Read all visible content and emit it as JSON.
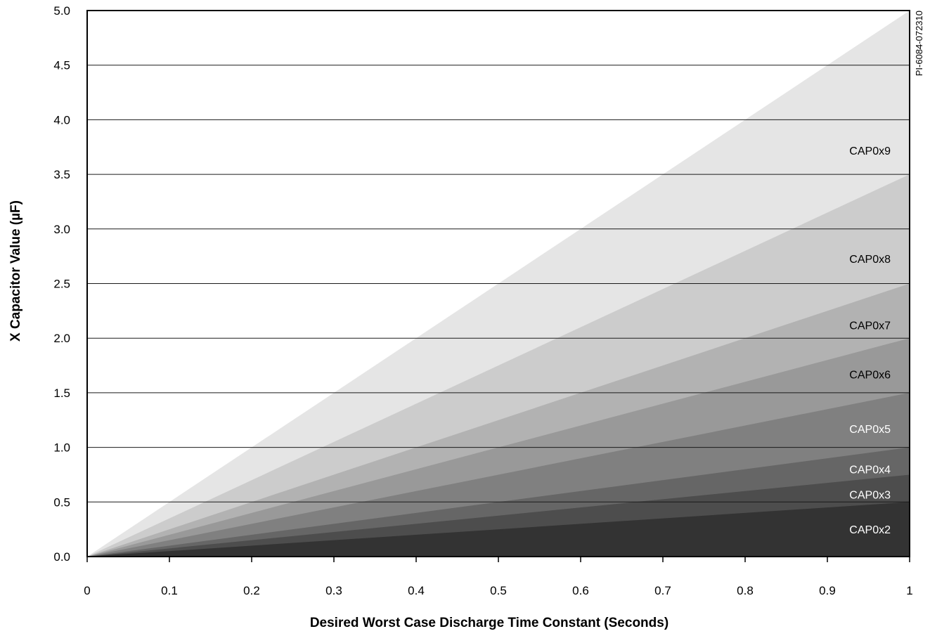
{
  "chart_data": {
    "type": "area",
    "title": "",
    "xlabel": "Desired Worst Case Discharge Time Constant (Seconds)",
    "ylabel": "X Capacitor Value (µF)",
    "figure_id": "PI-6084-072310",
    "xlim": [
      0,
      1
    ],
    "ylim": [
      0,
      5
    ],
    "x_ticks": [
      "0",
      "0.1",
      "0.2",
      "0.3",
      "0.4",
      "0.5",
      "0.6",
      "0.7",
      "0.8",
      "0.9",
      "1"
    ],
    "y_ticks": [
      "0.0",
      "0.5",
      "1.0",
      "1.5",
      "2.0",
      "2.5",
      "3.0",
      "3.5",
      "4.0",
      "4.5",
      "5.0"
    ],
    "grid": "horizontal",
    "series": [
      {
        "name": "CAP0x2",
        "slope": 0.5,
        "value_at_x1": 0.5,
        "color": "#333333",
        "label_color": "#ffffff",
        "label_at": 0.25
      },
      {
        "name": "CAP0x3",
        "slope": 0.75,
        "value_at_x1": 0.75,
        "color": "#4d4d4d",
        "label_color": "#ffffff",
        "label_at": 0.57
      },
      {
        "name": "CAP0x4",
        "slope": 1.0,
        "value_at_x1": 1.0,
        "color": "#666666",
        "label_color": "#ffffff",
        "label_at": 0.8
      },
      {
        "name": "CAP0x5",
        "slope": 1.5,
        "value_at_x1": 1.5,
        "color": "#808080",
        "label_color": "#ffffff",
        "label_at": 1.17
      },
      {
        "name": "CAP0x6",
        "slope": 2.0,
        "value_at_x1": 2.0,
        "color": "#999999",
        "label_color": "#000000",
        "label_at": 1.67
      },
      {
        "name": "CAP0x7",
        "slope": 2.5,
        "value_at_x1": 2.5,
        "color": "#b2b2b2",
        "label_color": "#000000",
        "label_at": 2.12
      },
      {
        "name": "CAP0x8",
        "slope": 3.5,
        "value_at_x1": 3.5,
        "color": "#cccccc",
        "label_color": "#000000",
        "label_at": 2.73
      },
      {
        "name": "CAP0x9",
        "slope": 5.0,
        "value_at_x1": 5.0,
        "color": "#e5e5e5",
        "label_color": "#000000",
        "label_at": 3.72
      }
    ]
  }
}
